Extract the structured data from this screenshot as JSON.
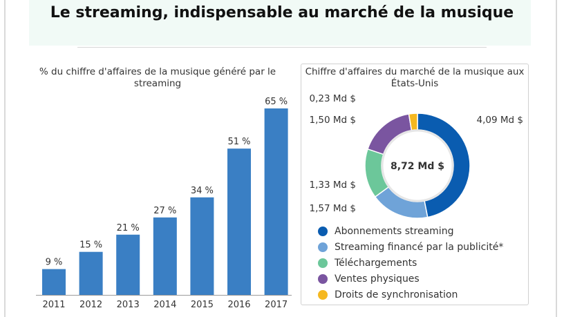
{
  "title": "Le streaming, indispensable au marché de la musique",
  "colors": {
    "bar": "#3a7fc4",
    "header_bg": "#f1faf6"
  },
  "chart_data": [
    {
      "type": "bar",
      "title": "% du chiffre d'affaires de la musique généré par le streaming",
      "categories": [
        "2011",
        "2012",
        "2013",
        "2014",
        "2015",
        "2016",
        "2017"
      ],
      "values": [
        9,
        15,
        21,
        27,
        34,
        51,
        65
      ],
      "value_labels": [
        "9 %",
        "15 %",
        "21 %",
        "27 %",
        "34 %",
        "51 %",
        "65 %"
      ],
      "ylim": [
        0,
        65
      ],
      "grid": false
    },
    {
      "type": "pie",
      "title": "Chiffre d'affaires du marché de la musique aux États-Unis",
      "center_label": "8,72 Md $",
      "slices": [
        {
          "name": "Abonnements streaming",
          "value": 4.09,
          "label": "4,09 Md $",
          "color": "#0a5cb0"
        },
        {
          "name": "Streaming financé par la publicité*",
          "value": 1.57,
          "label": "1,57 Md $",
          "color": "#6fa3d8"
        },
        {
          "name": "Téléchargements",
          "value": 1.33,
          "label": "1,33 Md $",
          "color": "#6cc79a"
        },
        {
          "name": "Ventes physiques",
          "value": 1.5,
          "label": "1,50 Md $",
          "color": "#7a55a0"
        },
        {
          "name": "Droits de synchronisation",
          "value": 0.23,
          "label": "0,23 Md $",
          "color": "#f5b820"
        }
      ]
    }
  ]
}
